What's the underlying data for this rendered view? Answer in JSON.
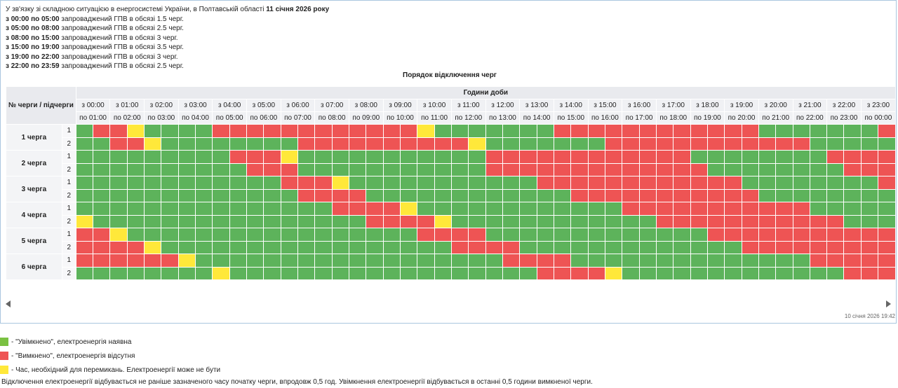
{
  "header": {
    "intro_prefix": "У зв'язку зі складною ситуацією в енергосистемі України, в Полтавській області ",
    "intro_date": "11 січня 2026 року",
    "lines": [
      {
        "range": "з 00:00 по 05:00",
        "text": " запроваджений ГПВ в обсязі 1.5 черг."
      },
      {
        "range": "з 05:00 по 08:00",
        "text": " запроваджений ГПВ в обсязі 2.5 черг."
      },
      {
        "range": "з 08:00 по 15:00",
        "text": " запроваджений ГПВ в обсязі 3 черг."
      },
      {
        "range": "з 15:00 по 19:00",
        "text": " запроваджений ГПВ в обсязі 3.5 черг."
      },
      {
        "range": "з 19:00 по 22:00",
        "text": " запроваджений ГПВ в обсязі 3 черг."
      },
      {
        "range": "з 22:00 по 23:59",
        "text": " запроваджений ГПВ в обсязі 2.5 черг."
      }
    ]
  },
  "schedule": {
    "title": "Порядок відключення черг",
    "corner_label": "№ черги / підчерги",
    "hours_label": "Години доби",
    "from": [
      "з 00:00",
      "з 01:00",
      "з 02:00",
      "з 03:00",
      "з 04:00",
      "з 05:00",
      "з 06:00",
      "з 07:00",
      "з 08:00",
      "з 09:00",
      "з 10:00",
      "з 11:00",
      "з 12:00",
      "з 13:00",
      "з 14:00",
      "з 15:00",
      "з 16:00",
      "з 17:00",
      "з 18:00",
      "з 19:00",
      "з 20:00",
      "з 21:00",
      "з 22:00",
      "з 23:00"
    ],
    "to": [
      "по 01:00",
      "по 02:00",
      "по 03:00",
      "по 04:00",
      "по 05:00",
      "по 06:00",
      "по 07:00",
      "по 08:00",
      "по 09:00",
      "по 10:00",
      "по 11:00",
      "по 12:00",
      "по 13:00",
      "по 14:00",
      "по 15:00",
      "по 16:00",
      "по 17:00",
      "по 18:00",
      "по 19:00",
      "по 20:00",
      "по 21:00",
      "по 22:00",
      "по 23:00",
      "по 00:00"
    ],
    "queues": [
      {
        "name": "1 черга",
        "subs": [
          {
            "label": "1",
            "cells": "GGRRRRYGGGGGGGGGRRRRRRRRRRRRRRRRRRRRRRRRYGGGGGGGGGGGGGGGRRRRRRRRRRRRRRRRRRRRRRRYGGGGGGGGGGGGGGRRRRRRRRRRRRRRRRYGG"
          },
          {
            "label": "2",
            "cells": "GGGGRRRRYGGGGGGGGGGGGGGGGRRRRRRRRRRRRRRRRRRRRRYGGGGGGGGGGGGGGGRRRRRRRRRRRRRRRRRRRRRRRYGGGGGGGGGGGGGGRRRRRRRRRRRRYG"
          }
        ]
      },
      {
        "name": "2 черга",
        "subs": [
          {
            "label": "1",
            "cells": "GGGGGGGGGGGGGGGGGRRRRRRRYGGGGGGGGGGGGGGGGGGGGGGGRRRRRRRRRRRRRRRRRRRRRRRYGGGGGGGGGGGGGGGRRRRRRRRRRRRRRRRRRRRRYGGGGGY"
          },
          {
            "label": "2",
            "cells": "GGGGGGGGGGGGGGGGGGGGRRRRRYGGGGGGGGGGGGGGGGGGGGGGRRRRRRRRRRRRRRRRRRRRRRRRRYGGGGGGGGGGGGGGGGRRRRRRRRRRRRRRRRRRRRRRRRR"
          }
        ]
      },
      {
        "name": "3 черга",
        "subs": [
          {
            "label": "1",
            "cells": "GGGGGGGGGGGGGGGGGGGGGGGRRRRRRRYGGGGGGGGGGGGGGGGGGGGGGGRRRRRRRRRRRRRRRRRRRRRRRYGGGGGGGGGGGGGGGGRRRRRRRRRRRRRRRRRRRRRRR"
          },
          {
            "label": "2",
            "cells": "GGGGGGGGGGGGGGGGGGGGGGGGGGRRRRRRRYGGGGGGGGGGGGGGGGGGGGGGGRRRRRRRRRRRRRRRRRRRRRRYGGGGGGGGGGGGGGGGGRRRRRRRRRRRRRRRRRRRR"
          }
        ]
      },
      {
        "name": "4 черга",
        "subs": [
          {
            "label": "1",
            "cells": "GGGGGGGGGGGGGGGGGGGGGGGGGGGGGGRRRRRRRRYGGGGGGGGGGGGGGGGGGGGGGGGRRRRRRRRRRRRRRRRRRRRRRYGGGGGGGGGGGGGGGGGRRRRRRRRRRRRR"
          },
          {
            "label": "2",
            "cells": "YGGGGGGGGGGGGGGGGGGGGGGGGGGGGGGGGGRRRRRRRRYGGGGGGGGGGGGGGGGGGGGGGGGRRRRRRRRRRRRRRRRRRRRRRYGGGGGGGGGGGGGGGGGRRRRRRRRR"
          }
        ]
      },
      {
        "name": "5 черга",
        "subs": [
          {
            "label": "1",
            "cells": "RRRRYGGGGGGGGGGGGGGGGGGGGGGGGGGGGGGGGGGRRRRRRRRYGGGGGGGGGGGGGGGGGGGGGGGGGGRRRRRRRRRRRRRRRRRRRRRYGGGGGGGGGGGGGGGGGGRRR"
          },
          {
            "label": "2",
            "cells": "RRRRRRRRYGGGGGGGGGGGGGGGGGGGGGGGGGGGGGGGGGGRRRRRRRRYGGGGGGGGGGGGGGGGGGGGGGGGGGRRRRRRRRRRRRRRRRRRRRYGGGGGGGGGGGGGGGGG"
          }
        ]
      },
      {
        "name": "6 черга",
        "subs": [
          {
            "label": "1",
            "cells": "RRRRRRRRRRRRYGGGGGGGGGGGGGGGGGGGGGGGGGGGGGGGGGGGGRRRRRRRRYGGGGGGGGGGGGGGGGGGGGGGGGGGGRRRRRRRRRRRRRRRRRRRRRYGGGGGGGGG"
          },
          {
            "label": "2",
            "cells": "GGGGGGGGGGGGGGGGYGGGGGGGGGGGGGGGGGGGGGGGGGGGGGGGGGGGGGRRRRRRRRYGGGGGGGGGGGGGGGGGGGGGGGGGGGRRRRRRRRRRRRRRRRRRRRRRRRRY"
          }
        ]
      }
    ]
  },
  "stamp": "10 січня 2026 19:42",
  "legend": [
    {
      "color": "#7ac142",
      "text": "- \"Увімкнено\", електроенергія наявна"
    },
    {
      "color": "#ee5454",
      "text": "- \"Вимкнено\", електроенергія відсутня"
    },
    {
      "color": "#ffe83a",
      "text": "- Час, необхідний для перемикань. Електроенергії може не бути"
    }
  ],
  "note": "Відключення електроенергії відбувається не раніше зазначеного часу початку черги, впродовж 0,5 год. Увімкнення електроенергії відбувається в останні 0,5 години вимкненої черги.",
  "colors": {
    "on": "#5db35b",
    "off": "#ee5454",
    "switch": "#ffe83a"
  }
}
